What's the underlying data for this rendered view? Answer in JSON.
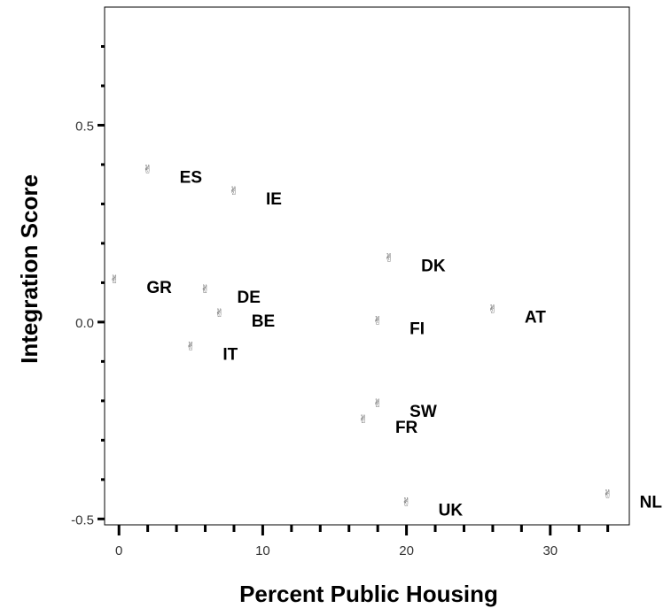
{
  "chart_data": {
    "type": "scatter",
    "xlabel": "Percent Public Housing",
    "ylabel": "Integration Score",
    "xlim": [
      -1,
      35.5
    ],
    "ylim": [
      -0.515,
      0.8
    ],
    "xticks": [
      0,
      10,
      20,
      30
    ],
    "xtick_labels": [
      "0",
      "10",
      "20",
      "30"
    ],
    "yticks": [
      -0.5,
      0.0,
      0.5
    ],
    "ytick_labels": [
      "-0.5",
      "0.0",
      "0.5"
    ],
    "grid": false,
    "marker_symbol": "✌",
    "points": [
      {
        "label": "ES",
        "x": 2,
        "y": 0.39
      },
      {
        "label": "IE",
        "x": 8,
        "y": 0.335
      },
      {
        "label": "GR",
        "x": -0.3,
        "y": 0.11
      },
      {
        "label": "DE",
        "x": 6,
        "y": 0.085
      },
      {
        "label": "BE",
        "x": 7,
        "y": 0.025
      },
      {
        "label": "IT",
        "x": 5,
        "y": -0.06
      },
      {
        "label": "DK",
        "x": 18.8,
        "y": 0.165
      },
      {
        "label": "FI",
        "x": 18,
        "y": 0.005
      },
      {
        "label": "AT",
        "x": 26,
        "y": 0.035
      },
      {
        "label": "SW",
        "x": 18,
        "y": -0.205
      },
      {
        "label": "FR",
        "x": 17,
        "y": -0.245
      },
      {
        "label": "UK",
        "x": 20,
        "y": -0.455
      },
      {
        "label": "NL",
        "x": 34,
        "y": -0.435
      }
    ]
  }
}
